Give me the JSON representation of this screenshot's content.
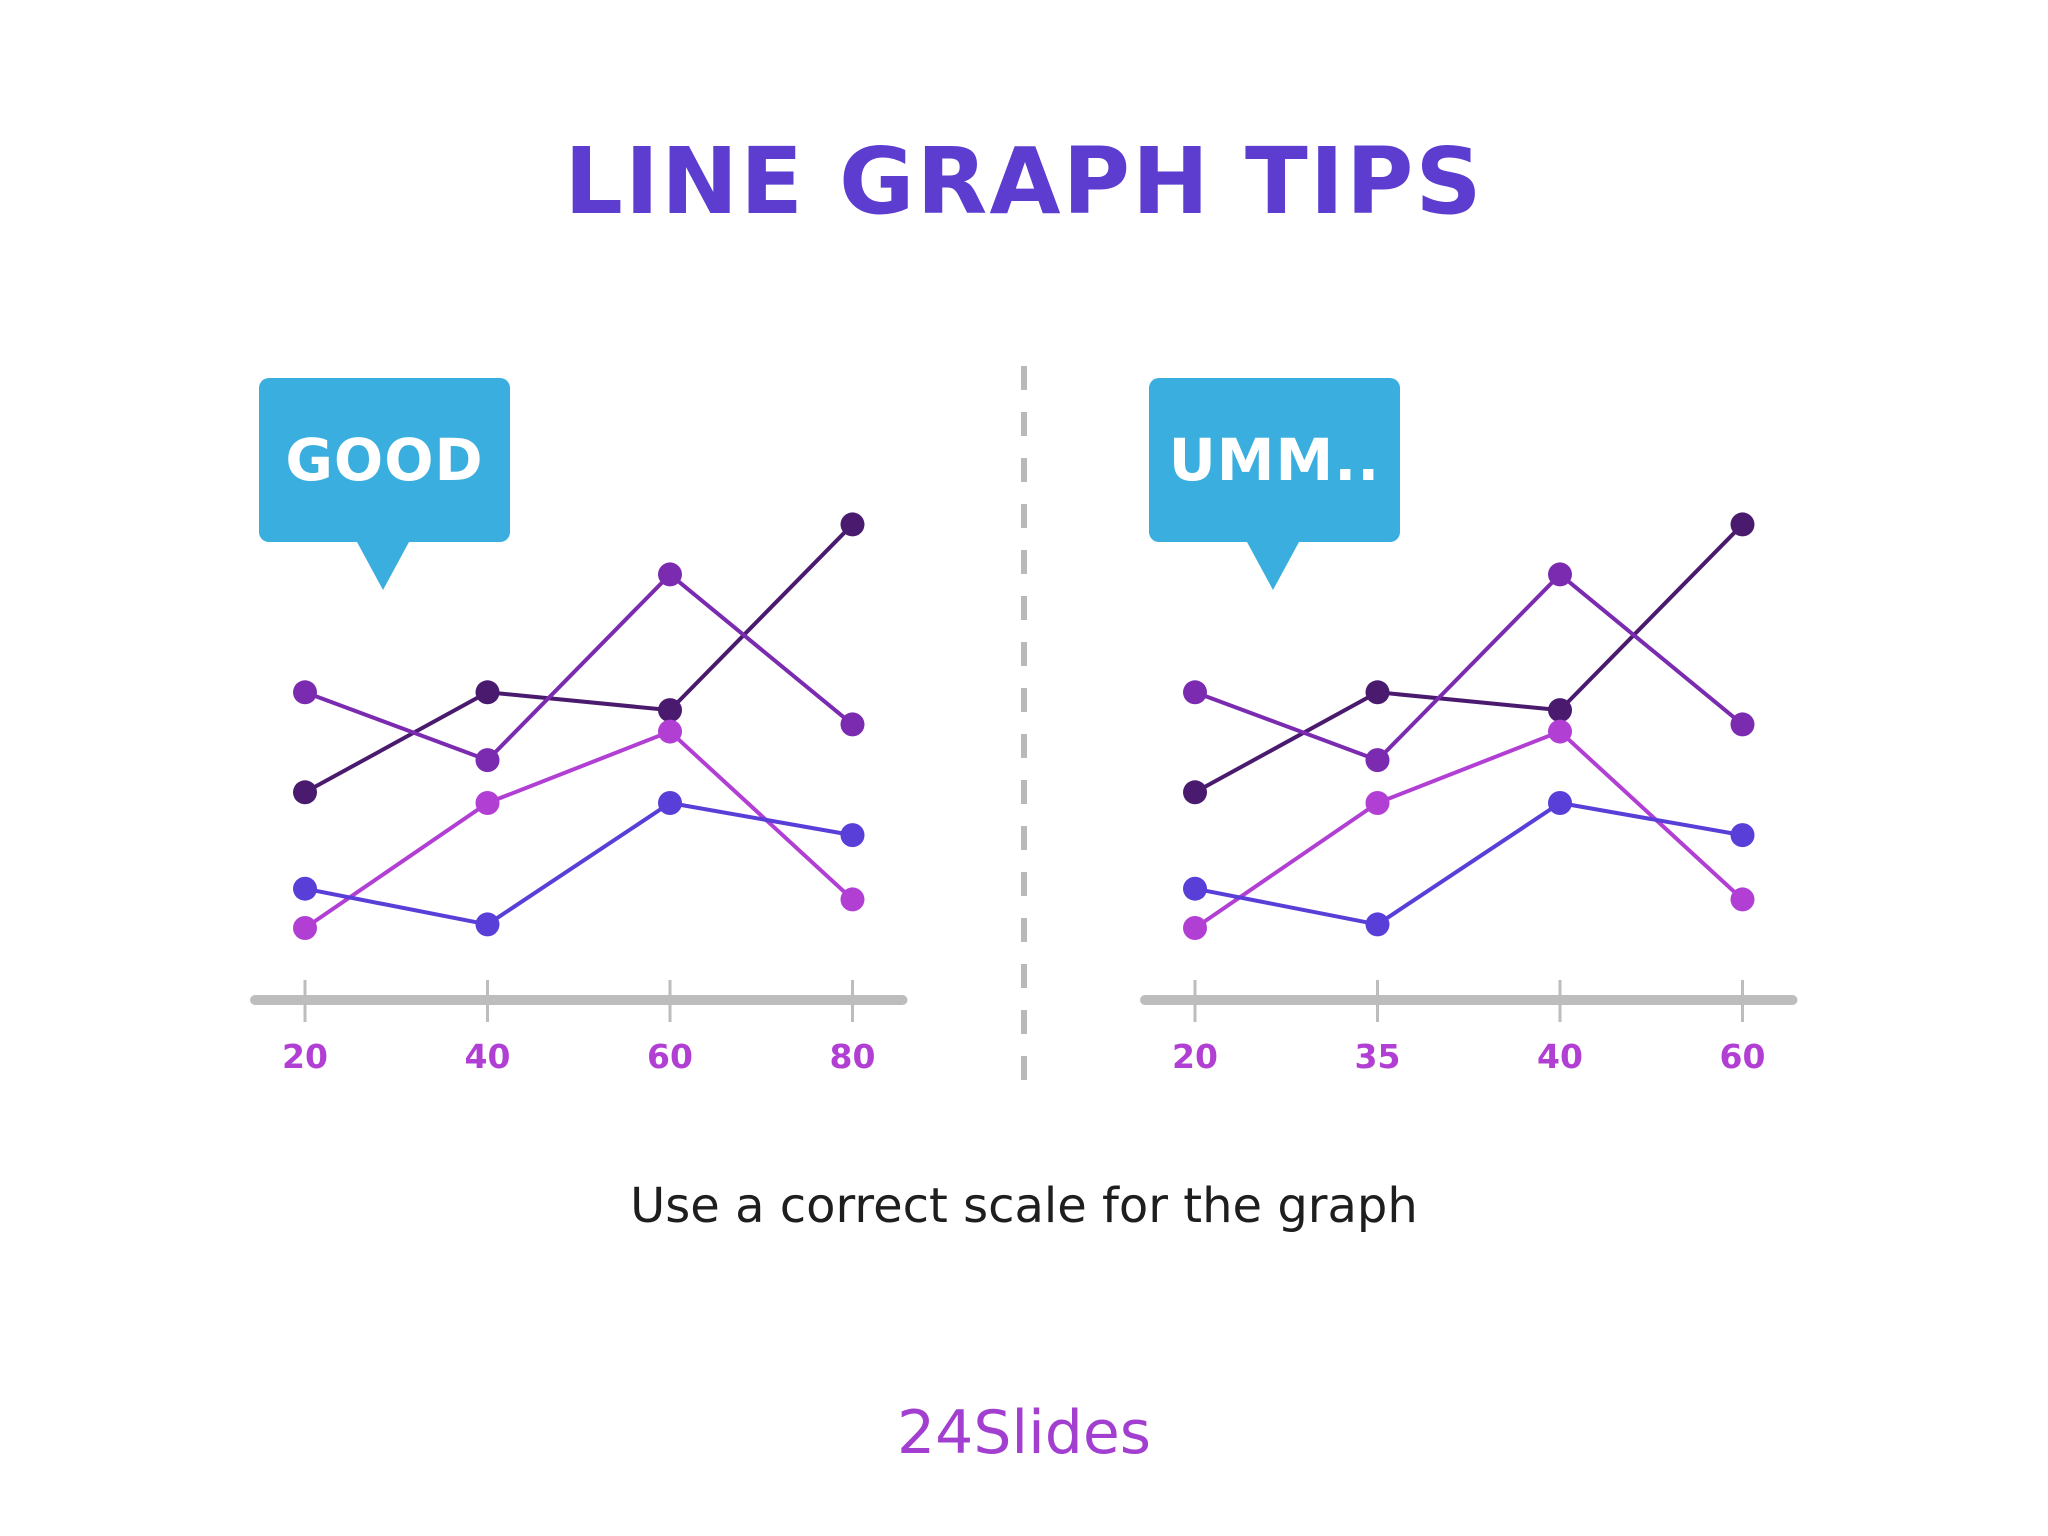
{
  "title": "LINE GRAPH TIPS",
  "caption": "Use a correct scale for the graph",
  "logo_text": "24Slides",
  "colors": {
    "title": "#5c3dd0",
    "bubble": "#3aaede",
    "axis": "#bdbdbd",
    "tick_label": "#b23fd4",
    "divider": "#b9b9b9"
  },
  "chart_data": [
    {
      "type": "line",
      "bubble_label": "GOOD",
      "categories": [
        "20",
        "40",
        "60",
        "80"
      ],
      "series": [
        {
          "color": "#4a1a6e",
          "values": [
            45,
            73,
            68,
            120
          ]
        },
        {
          "color": "#7b2bb0",
          "values": [
            73,
            54,
            106,
            64
          ]
        },
        {
          "color": "#b23fd4",
          "values": [
            7,
            42,
            62,
            15
          ]
        },
        {
          "color": "#5a3ed8",
          "values": [
            18,
            8,
            42,
            33
          ]
        }
      ],
      "ylim": [
        0,
        140
      ],
      "grid": false
    },
    {
      "type": "line",
      "bubble_label": "UMM..",
      "categories": [
        "20",
        "35",
        "40",
        "60"
      ],
      "series": [
        {
          "color": "#4a1a6e",
          "values": [
            45,
            73,
            68,
            120
          ]
        },
        {
          "color": "#7b2bb0",
          "values": [
            73,
            54,
            106,
            64
          ]
        },
        {
          "color": "#b23fd4",
          "values": [
            7,
            42,
            62,
            15
          ]
        },
        {
          "color": "#5a3ed8",
          "values": [
            18,
            8,
            42,
            33
          ]
        }
      ],
      "ylim": [
        0,
        140
      ],
      "grid": false
    }
  ]
}
